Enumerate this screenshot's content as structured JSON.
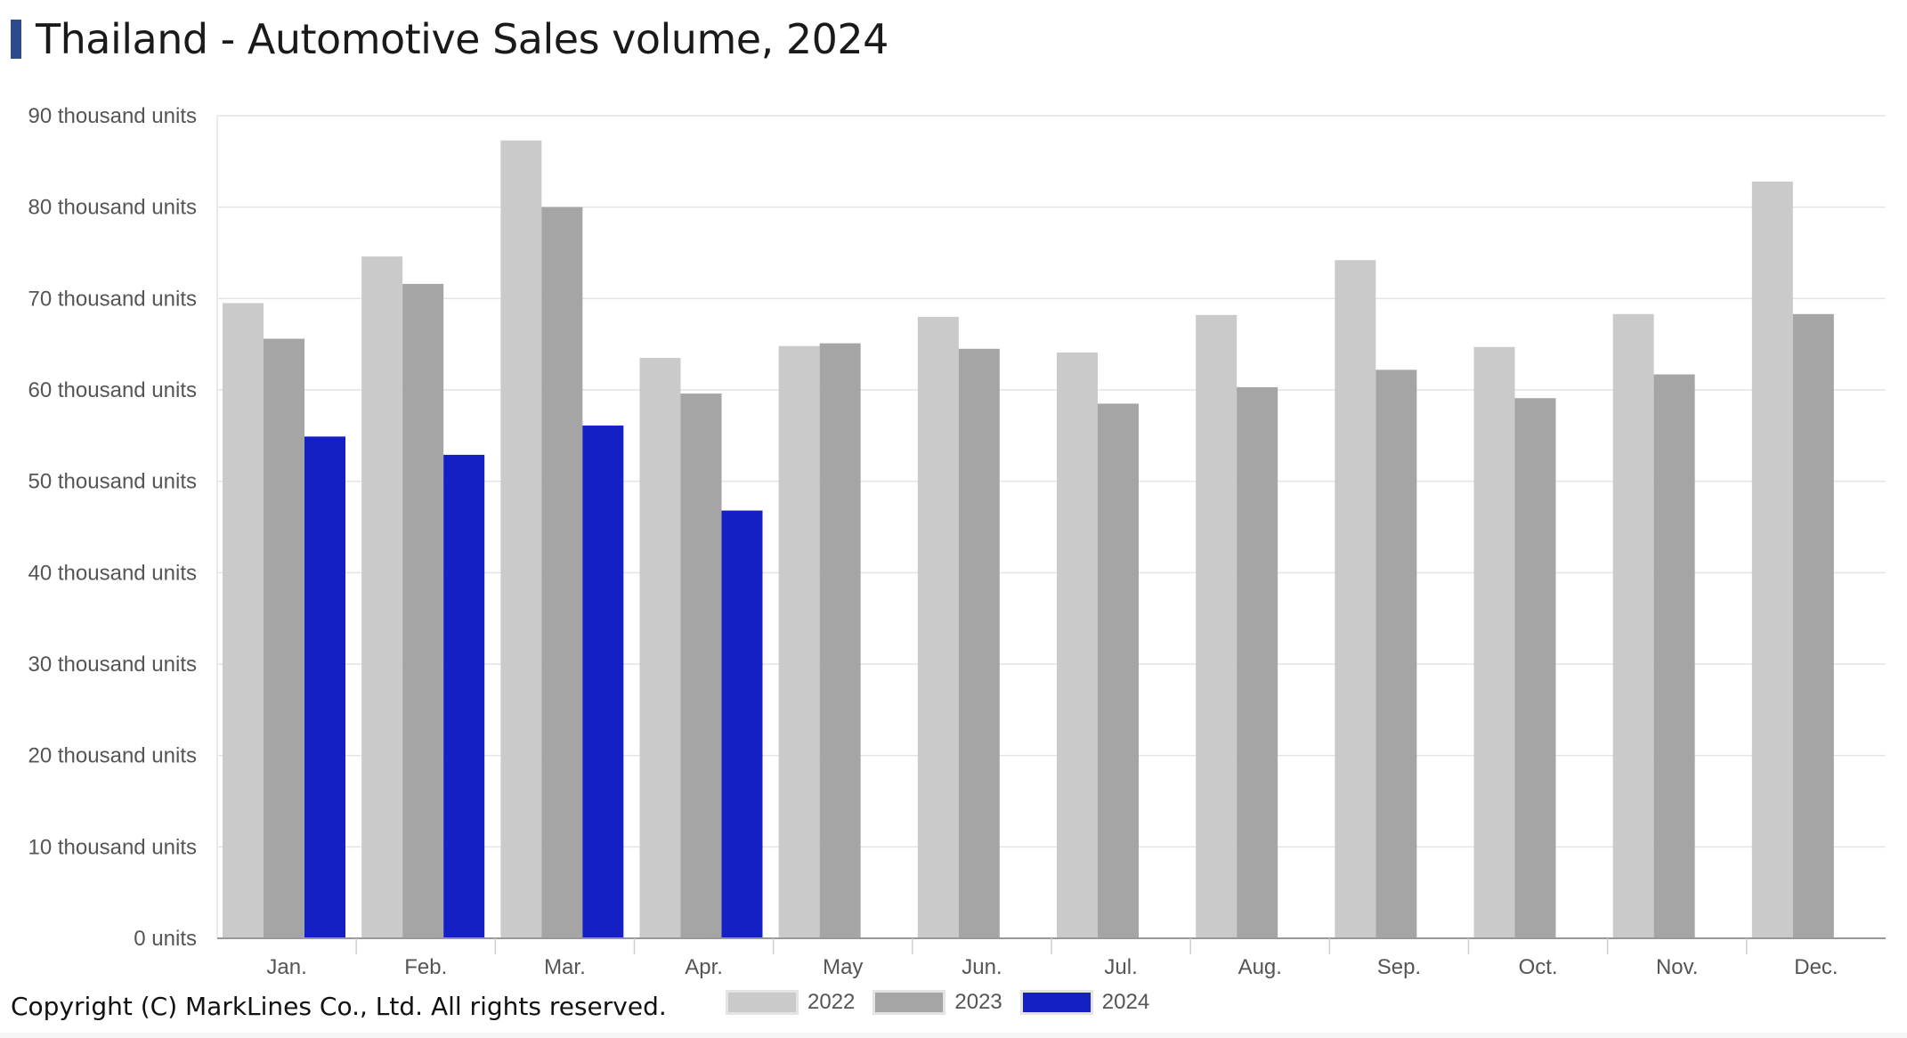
{
  "page": {
    "title": "Thailand - Automotive Sales volume, 2024",
    "copyright": "Copyright (C) MarkLines Co., Ltd. All rights reserved."
  },
  "colors": {
    "accent": "#2d4a8c",
    "grid": "#e4e4e4",
    "axis": "#999999"
  },
  "chart_data": {
    "type": "bar",
    "title": "Thailand - Automotive Sales volume, 2024",
    "xlabel": "",
    "ylabel": "",
    "categories": [
      "Jan.",
      "Feb.",
      "Mar.",
      "Apr.",
      "May",
      "Jun.",
      "Jul.",
      "Aug.",
      "Sep.",
      "Oct.",
      "Nov.",
      "Dec."
    ],
    "ylim": [
      0,
      90000
    ],
    "yticks": [
      0,
      10000,
      20000,
      30000,
      40000,
      50000,
      60000,
      70000,
      80000,
      90000
    ],
    "ytick_labels": [
      "0 units",
      "10 thousand units",
      "20 thousand units",
      "30 thousand units",
      "40 thousand units",
      "50 thousand units",
      "60 thousand units",
      "70 thousand units",
      "80 thousand units",
      "90 thousand units"
    ],
    "grid": true,
    "legend_position": "bottom",
    "series": [
      {
        "name": "2022",
        "color": "#cacaca",
        "values": [
          69500,
          74600,
          87300,
          63500,
          64800,
          68000,
          64100,
          68200,
          74200,
          64700,
          68300,
          82800
        ]
      },
      {
        "name": "2023",
        "color": "#a5a5a5",
        "values": [
          65600,
          71600,
          80000,
          59600,
          65100,
          64500,
          58500,
          60300,
          62200,
          59100,
          61700,
          68300
        ]
      },
      {
        "name": "2024",
        "color": "#1520c4",
        "values": [
          54900,
          52900,
          56100,
          46800,
          null,
          null,
          null,
          null,
          null,
          null,
          null,
          null
        ]
      }
    ]
  }
}
